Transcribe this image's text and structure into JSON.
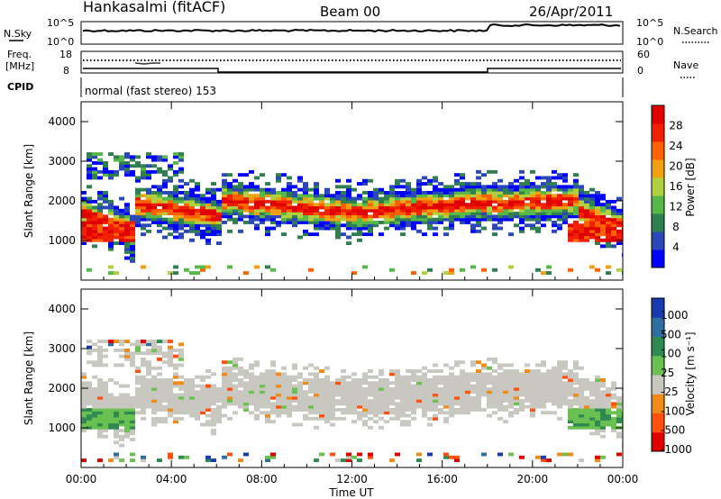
{
  "header": {
    "station": "Hankasalmi (fitACF)",
    "beam": "Beam 00",
    "date": "26/Apr/2011"
  },
  "nsky_panel": {
    "left_label": "N.Sky",
    "right_label": "N.Search",
    "left_ticks": [
      "10^5",
      "10^0"
    ],
    "right_ticks": [
      "10^5",
      "10^0"
    ]
  },
  "freq_panel": {
    "left_label_line1": "Freq.",
    "left_label_line2": "[MHz]",
    "right_label": "Nave",
    "left_ticks": [
      "18",
      "8"
    ],
    "right_ticks": [
      "60",
      "0"
    ]
  },
  "cpid_panel": {
    "left_label": "CPID",
    "text": "normal (fast stereo) 153"
  },
  "colors": {
    "power": [
      "#0000ff",
      "#2a48b8",
      "#2f7f50",
      "#55b848",
      "#b0d040",
      "#f0a010",
      "#ff6000",
      "#f02000",
      "#e00000"
    ],
    "velocity": [
      "#1a3ab0",
      "#2e6fa0",
      "#2e8a50",
      "#6ac050",
      "#c8c8c0",
      "#f08a18",
      "#ff5010",
      "#e00000"
    ]
  },
  "chart_data": [
    {
      "type": "heatmap",
      "name": "power",
      "ylabel": "Slant Range [km]",
      "yticks": [
        1000,
        2000,
        3000,
        4000
      ],
      "ylim": [
        0,
        4500
      ],
      "xlim": [
        0,
        24
      ],
      "colorbar_label": "Power [dB]",
      "colorbar_ticks": [
        "4",
        "8",
        "12",
        "16",
        "20",
        "24",
        "28"
      ]
    },
    {
      "type": "heatmap",
      "name": "velocity",
      "ylabel": "Slant Range [km]",
      "yticks": [
        1000,
        2000,
        3000,
        4000
      ],
      "ylim": [
        0,
        4500
      ],
      "xlim": [
        0,
        24
      ],
      "colorbar_label": "Velocity [m s⁻¹]",
      "colorbar_ticks": [
        "1000",
        "500",
        "100",
        "25",
        "-25",
        "-100",
        "-500",
        "-1000"
      ]
    }
  ],
  "x_axis": {
    "ticks": [
      "00:00",
      "04:00",
      "08:00",
      "12:00",
      "16:00",
      "20:00",
      "00:00"
    ],
    "tick_hours": [
      0,
      4,
      8,
      12,
      16,
      20,
      24
    ],
    "label": "Time UT"
  }
}
